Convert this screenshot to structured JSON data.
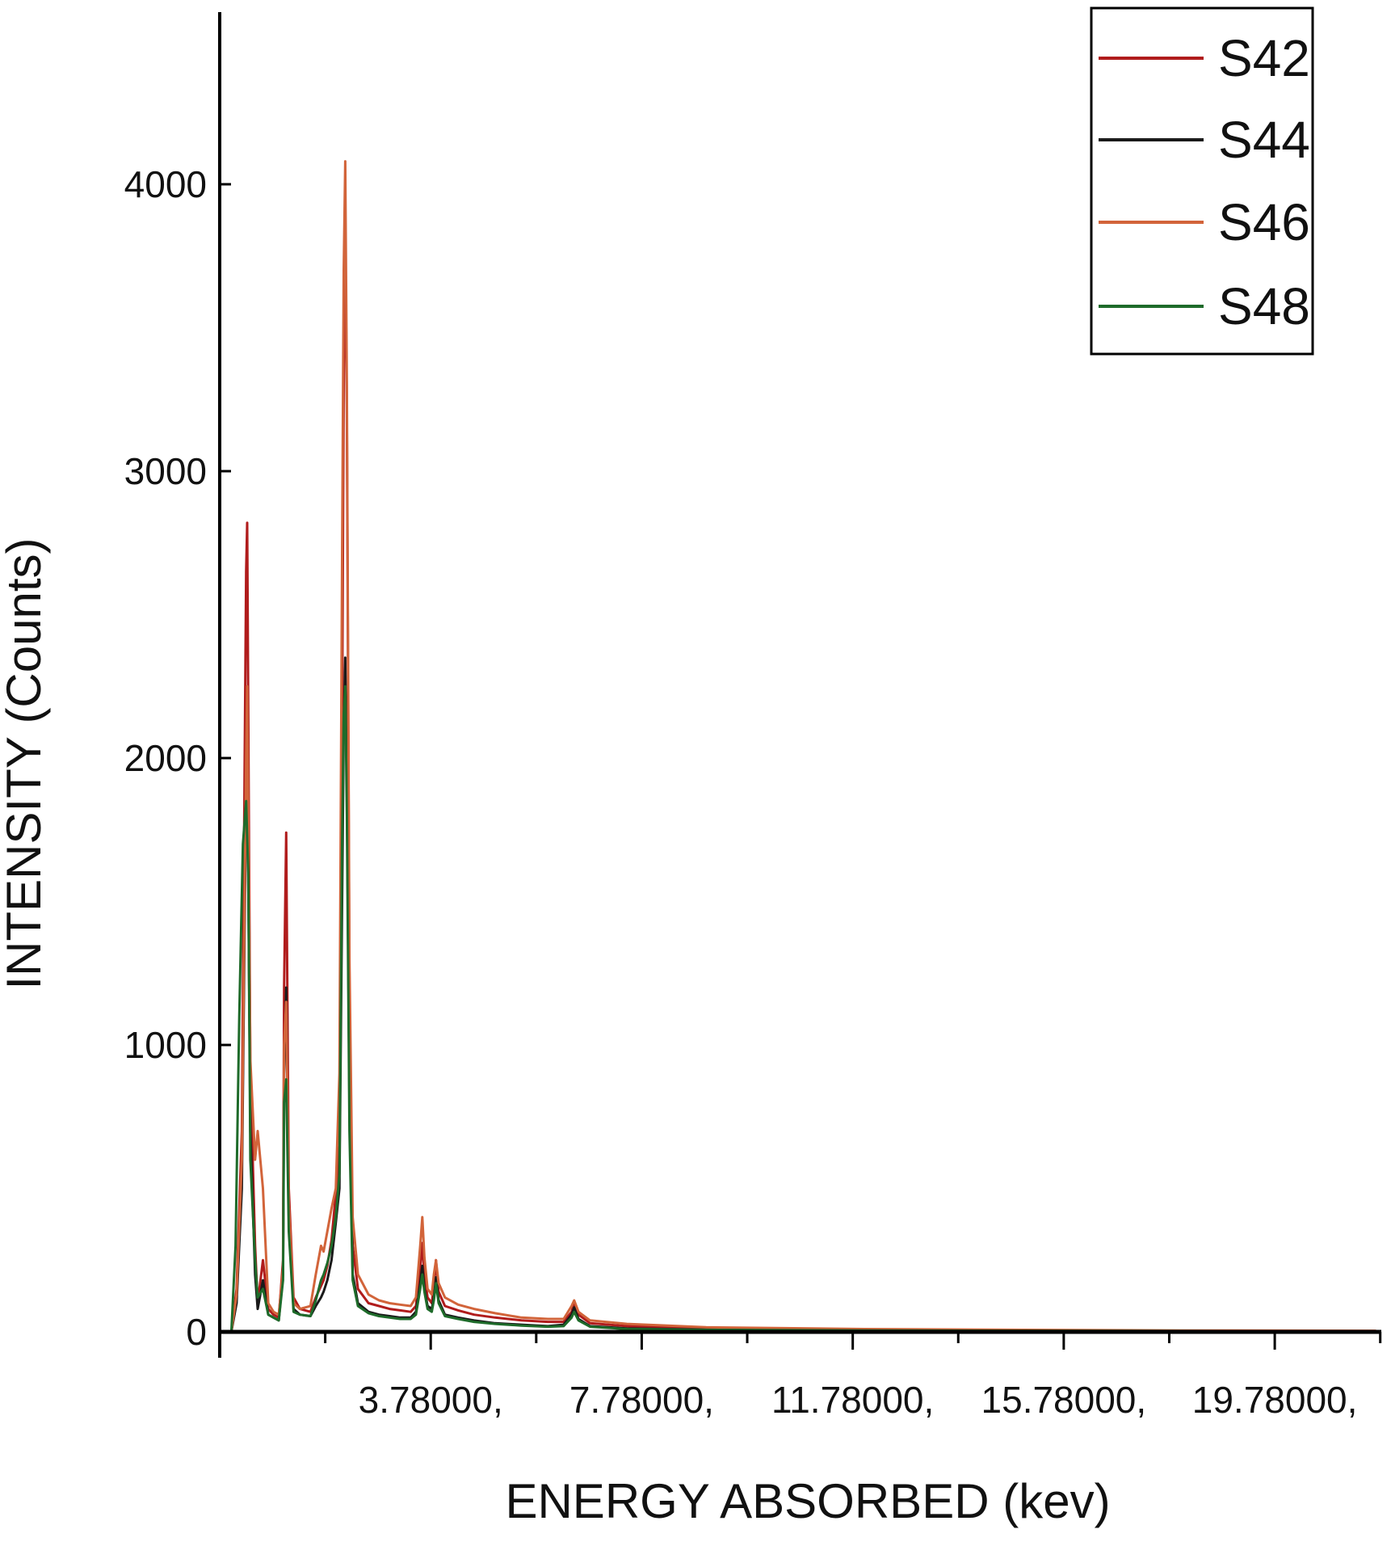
{
  "chart_data": {
    "type": "line",
    "title": "",
    "xlabel": "ENERGY ABSORBED (kev)",
    "ylabel": "INTENSITY (Counts)",
    "xlim": [
      -0.22,
      21.8
    ],
    "ylim": [
      -40,
      4600
    ],
    "xticks": [
      {
        "value": 3.78,
        "label": "3.78000,"
      },
      {
        "value": 7.78,
        "label": "7.78000,"
      },
      {
        "value": 11.78,
        "label": "11.78000,"
      },
      {
        "value": 15.78,
        "label": "15.78000,"
      },
      {
        "value": 19.78,
        "label": "19.78000,"
      }
    ],
    "xminor_ticks": [
      1.78,
      5.78,
      9.78,
      13.78,
      17.78,
      21.78
    ],
    "yticks": [
      0,
      1000,
      2000,
      3000,
      4000
    ],
    "grid": false,
    "legend_position": "top-right",
    "series": [
      {
        "name": "S42",
        "color": "#b01c1c",
        "points": [
          [
            0.0,
            0
          ],
          [
            0.1,
            150
          ],
          [
            0.2,
            700
          ],
          [
            0.28,
            2650
          ],
          [
            0.3,
            2820
          ],
          [
            0.36,
            900
          ],
          [
            0.45,
            300
          ],
          [
            0.5,
            100
          ],
          [
            0.6,
            250
          ],
          [
            0.7,
            80
          ],
          [
            0.8,
            60
          ],
          [
            0.9,
            50
          ],
          [
            0.98,
            250
          ],
          [
            1.0,
            1200
          ],
          [
            1.04,
            1740
          ],
          [
            1.09,
            500
          ],
          [
            1.18,
            120
          ],
          [
            1.3,
            80
          ],
          [
            1.5,
            70
          ],
          [
            1.6,
            120
          ],
          [
            1.7,
            160
          ],
          [
            1.75,
            180
          ],
          [
            1.82,
            230
          ],
          [
            1.9,
            320
          ],
          [
            1.98,
            480
          ],
          [
            2.05,
            650
          ],
          [
            2.1,
            2100
          ],
          [
            2.13,
            3300
          ],
          [
            2.16,
            3880
          ],
          [
            2.19,
            3200
          ],
          [
            2.24,
            1200
          ],
          [
            2.3,
            300
          ],
          [
            2.4,
            150
          ],
          [
            2.6,
            100
          ],
          [
            2.8,
            90
          ],
          [
            3.0,
            80
          ],
          [
            3.2,
            75
          ],
          [
            3.4,
            70
          ],
          [
            3.5,
            90
          ],
          [
            3.58,
            220
          ],
          [
            3.62,
            310
          ],
          [
            3.66,
            200
          ],
          [
            3.72,
            120
          ],
          [
            3.8,
            100
          ],
          [
            3.84,
            160
          ],
          [
            3.88,
            250
          ],
          [
            3.93,
            140
          ],
          [
            4.05,
            90
          ],
          [
            4.3,
            75
          ],
          [
            4.6,
            60
          ],
          [
            5.0,
            50
          ],
          [
            5.5,
            40
          ],
          [
            6.0,
            35
          ],
          [
            6.3,
            35
          ],
          [
            6.45,
            70
          ],
          [
            6.5,
            100
          ],
          [
            6.58,
            60
          ],
          [
            6.8,
            30
          ],
          [
            7.5,
            20
          ],
          [
            9.0,
            12
          ],
          [
            12.0,
            8
          ],
          [
            15.0,
            5
          ],
          [
            18.0,
            4
          ],
          [
            21.7,
            3
          ]
        ]
      },
      {
        "name": "S44",
        "color": "#1a1a1a",
        "points": [
          [
            0.0,
            0
          ],
          [
            0.1,
            100
          ],
          [
            0.2,
            500
          ],
          [
            0.28,
            1900
          ],
          [
            0.3,
            2050
          ],
          [
            0.36,
            700
          ],
          [
            0.45,
            200
          ],
          [
            0.5,
            80
          ],
          [
            0.6,
            180
          ],
          [
            0.7,
            60
          ],
          [
            0.8,
            50
          ],
          [
            0.9,
            40
          ],
          [
            0.98,
            200
          ],
          [
            1.0,
            900
          ],
          [
            1.04,
            1200
          ],
          [
            1.09,
            400
          ],
          [
            1.18,
            80
          ],
          [
            1.3,
            60
          ],
          [
            1.5,
            55
          ],
          [
            1.6,
            90
          ],
          [
            1.7,
            120
          ],
          [
            1.75,
            140
          ],
          [
            1.82,
            180
          ],
          [
            1.9,
            250
          ],
          [
            1.98,
            380
          ],
          [
            2.05,
            500
          ],
          [
            2.1,
            1500
          ],
          [
            2.13,
            2100
          ],
          [
            2.16,
            2350
          ],
          [
            2.19,
            1900
          ],
          [
            2.24,
            800
          ],
          [
            2.3,
            200
          ],
          [
            2.4,
            100
          ],
          [
            2.6,
            70
          ],
          [
            2.8,
            60
          ],
          [
            3.0,
            55
          ],
          [
            3.2,
            50
          ],
          [
            3.4,
            50
          ],
          [
            3.5,
            70
          ],
          [
            3.58,
            170
          ],
          [
            3.62,
            230
          ],
          [
            3.66,
            150
          ],
          [
            3.72,
            90
          ],
          [
            3.8,
            80
          ],
          [
            3.84,
            120
          ],
          [
            3.88,
            190
          ],
          [
            3.93,
            110
          ],
          [
            4.05,
            60
          ],
          [
            4.3,
            50
          ],
          [
            4.6,
            40
          ],
          [
            5.0,
            30
          ],
          [
            5.5,
            25
          ],
          [
            6.0,
            20
          ],
          [
            6.3,
            25
          ],
          [
            6.45,
            60
          ],
          [
            6.5,
            85
          ],
          [
            6.58,
            45
          ],
          [
            6.8,
            20
          ],
          [
            7.5,
            12
          ],
          [
            9.0,
            8
          ],
          [
            12.0,
            5
          ],
          [
            15.0,
            3
          ],
          [
            18.0,
            3
          ],
          [
            21.7,
            2
          ]
        ]
      },
      {
        "name": "S46",
        "color": "#d2643a",
        "points": [
          [
            0.0,
            0
          ],
          [
            0.1,
            130
          ],
          [
            0.2,
            600
          ],
          [
            0.28,
            2000
          ],
          [
            0.3,
            2250
          ],
          [
            0.36,
            950
          ],
          [
            0.45,
            600
          ],
          [
            0.5,
            700
          ],
          [
            0.6,
            500
          ],
          [
            0.7,
            100
          ],
          [
            0.8,
            70
          ],
          [
            0.9,
            60
          ],
          [
            0.98,
            220
          ],
          [
            1.0,
            1000
          ],
          [
            1.04,
            1150
          ],
          [
            1.09,
            450
          ],
          [
            1.18,
            100
          ],
          [
            1.3,
            80
          ],
          [
            1.5,
            90
          ],
          [
            1.6,
            200
          ],
          [
            1.7,
            300
          ],
          [
            1.75,
            280
          ],
          [
            1.82,
            350
          ],
          [
            1.9,
            430
          ],
          [
            1.98,
            500
          ],
          [
            2.05,
            900
          ],
          [
            2.1,
            2700
          ],
          [
            2.13,
            3700
          ],
          [
            2.16,
            4080
          ],
          [
            2.19,
            3300
          ],
          [
            2.24,
            1300
          ],
          [
            2.3,
            400
          ],
          [
            2.4,
            200
          ],
          [
            2.6,
            130
          ],
          [
            2.8,
            110
          ],
          [
            3.0,
            100
          ],
          [
            3.2,
            95
          ],
          [
            3.4,
            90
          ],
          [
            3.5,
            120
          ],
          [
            3.58,
            300
          ],
          [
            3.62,
            400
          ],
          [
            3.66,
            260
          ],
          [
            3.72,
            150
          ],
          [
            3.8,
            130
          ],
          [
            3.84,
            200
          ],
          [
            3.88,
            250
          ],
          [
            3.93,
            170
          ],
          [
            4.05,
            120
          ],
          [
            4.3,
            95
          ],
          [
            4.6,
            80
          ],
          [
            5.0,
            65
          ],
          [
            5.5,
            50
          ],
          [
            6.0,
            45
          ],
          [
            6.3,
            45
          ],
          [
            6.45,
            90
          ],
          [
            6.5,
            110
          ],
          [
            6.58,
            70
          ],
          [
            6.8,
            40
          ],
          [
            7.5,
            28
          ],
          [
            9.0,
            16
          ],
          [
            12.0,
            10
          ],
          [
            15.0,
            7
          ],
          [
            18.0,
            5
          ],
          [
            21.7,
            4
          ]
        ]
      },
      {
        "name": "S48",
        "color": "#1e6b2a",
        "points": [
          [
            0.0,
            0
          ],
          [
            0.08,
            300
          ],
          [
            0.15,
            1100
          ],
          [
            0.22,
            1700
          ],
          [
            0.28,
            1850
          ],
          [
            0.32,
            1600
          ],
          [
            0.36,
            600
          ],
          [
            0.45,
            250
          ],
          [
            0.5,
            120
          ],
          [
            0.6,
            150
          ],
          [
            0.7,
            60
          ],
          [
            0.8,
            50
          ],
          [
            0.9,
            40
          ],
          [
            0.98,
            180
          ],
          [
            1.0,
            800
          ],
          [
            1.04,
            880
          ],
          [
            1.09,
            350
          ],
          [
            1.18,
            70
          ],
          [
            1.3,
            60
          ],
          [
            1.5,
            55
          ],
          [
            1.6,
            110
          ],
          [
            1.7,
            180
          ],
          [
            1.75,
            200
          ],
          [
            1.82,
            240
          ],
          [
            1.9,
            300
          ],
          [
            1.98,
            400
          ],
          [
            2.05,
            550
          ],
          [
            2.1,
            1700
          ],
          [
            2.13,
            2150
          ],
          [
            2.16,
            2250
          ],
          [
            2.19,
            1800
          ],
          [
            2.24,
            700
          ],
          [
            2.3,
            180
          ],
          [
            2.4,
            90
          ],
          [
            2.6,
            65
          ],
          [
            2.8,
            55
          ],
          [
            3.0,
            50
          ],
          [
            3.2,
            45
          ],
          [
            3.4,
            45
          ],
          [
            3.5,
            60
          ],
          [
            3.58,
            150
          ],
          [
            3.62,
            200
          ],
          [
            3.66,
            140
          ],
          [
            3.72,
            80
          ],
          [
            3.8,
            70
          ],
          [
            3.84,
            110
          ],
          [
            3.88,
            170
          ],
          [
            3.93,
            100
          ],
          [
            4.05,
            55
          ],
          [
            4.3,
            45
          ],
          [
            4.6,
            35
          ],
          [
            5.0,
            28
          ],
          [
            5.5,
            22
          ],
          [
            6.0,
            18
          ],
          [
            6.3,
            20
          ],
          [
            6.45,
            50
          ],
          [
            6.5,
            70
          ],
          [
            6.58,
            40
          ],
          [
            6.8,
            18
          ],
          [
            7.5,
            10
          ],
          [
            9.0,
            7
          ],
          [
            12.0,
            5
          ],
          [
            15.0,
            4
          ],
          [
            18.0,
            3
          ],
          [
            21.7,
            2
          ]
        ]
      }
    ]
  }
}
